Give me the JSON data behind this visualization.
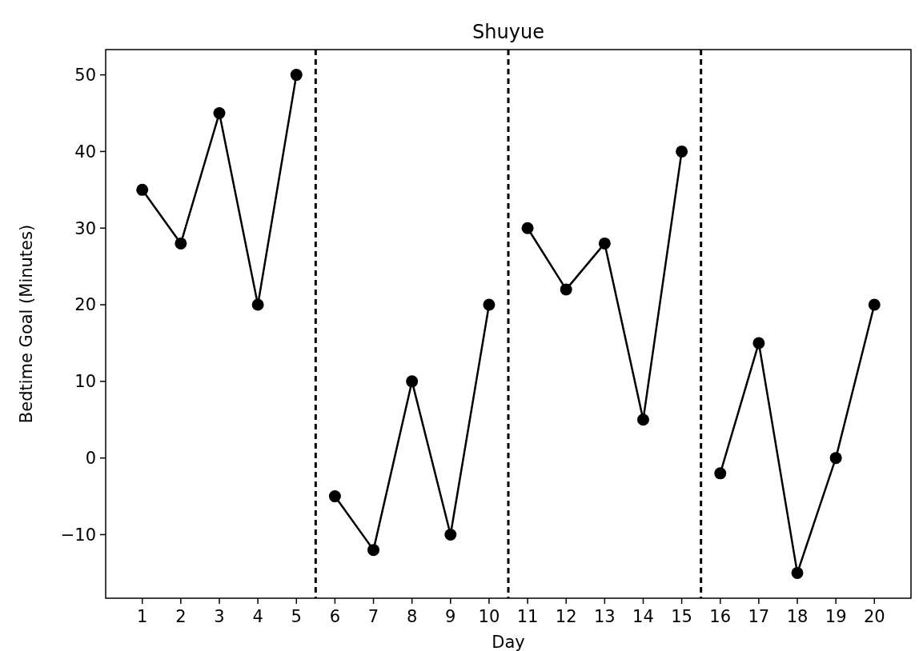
{
  "chart_data": {
    "type": "line",
    "title": "Shuyue",
    "xlabel": "Day",
    "ylabel": "Bedtime Goal (Minutes)",
    "series": [
      {
        "color": "#000000",
        "x": [
          1,
          2,
          3,
          4,
          5
        ],
        "values": [
          35,
          28,
          45,
          20,
          50
        ]
      },
      {
        "color": "#000000",
        "x": [
          6,
          7,
          8,
          9,
          10
        ],
        "values": [
          -5,
          -12,
          10,
          -10,
          20
        ]
      },
      {
        "color": "#000000",
        "x": [
          11,
          12,
          13,
          14,
          15
        ],
        "values": [
          30,
          22,
          28,
          5,
          40
        ]
      },
      {
        "color": "#000000",
        "x": [
          16,
          17,
          18,
          19,
          20
        ],
        "values": [
          -2,
          15,
          -15,
          0,
          20
        ]
      }
    ],
    "xlim": [
      0.05,
      20.95
    ],
    "xticks": [
      1,
      2,
      3,
      4,
      5,
      6,
      7,
      8,
      9,
      10,
      11,
      12,
      13,
      14,
      15,
      16,
      17,
      18,
      19,
      20
    ],
    "ylim": [
      -18.3,
      53.3
    ],
    "yticks": [
      -10,
      0,
      10,
      20,
      30,
      40,
      50
    ],
    "ref_lines": [
      {
        "axis": "x",
        "value": 5.5,
        "color": "#000000",
        "line_style": "dashed"
      },
      {
        "axis": "x",
        "value": 10.5,
        "color": "#000000",
        "line_style": "dashed"
      },
      {
        "axis": "x",
        "value": 15.5,
        "color": "#000000",
        "line_style": "dashed"
      }
    ],
    "marker": "circle",
    "line_style": "solid"
  }
}
